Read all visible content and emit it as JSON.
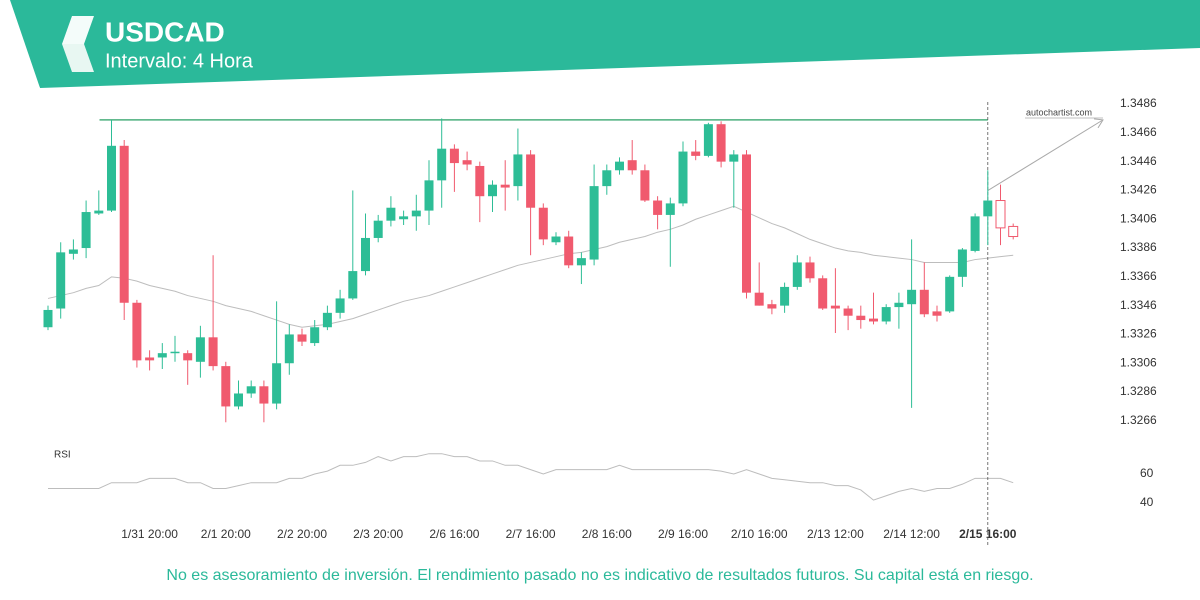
{
  "chart_data": {
    "type": "candlestick",
    "title": "USDCAD",
    "subtitle": "Intervalo: 4 Hora",
    "watermark": "autochartist.com",
    "disclaimer": "No es asesoramiento de inversión. El rendimiento pasado no es indicativo de resultados futuros. Su capital está en riesgo.",
    "categories": [
      null,
      null,
      null,
      null,
      null,
      null,
      null,
      null,
      "1/31 20:00",
      null,
      null,
      null,
      null,
      null,
      "2/1 20:00",
      null,
      null,
      null,
      null,
      null,
      "2/2 20:00",
      null,
      null,
      null,
      null,
      null,
      "2/3 20:00",
      null,
      null,
      null,
      null,
      null,
      "2/6 16:00",
      null,
      null,
      null,
      null,
      null,
      "2/7 16:00",
      null,
      null,
      null,
      null,
      null,
      "2/8 16:00",
      null,
      null,
      null,
      null,
      null,
      "2/9 16:00",
      null,
      null,
      null,
      null,
      null,
      "2/10 16:00",
      null,
      null,
      null,
      null,
      null,
      "2/13 12:00",
      null,
      null,
      null,
      null,
      null,
      "2/14 12:00",
      null,
      null,
      null,
      null,
      null,
      "2/15 16:00",
      null,
      null
    ],
    "open": [
      1.3331,
      1.3344,
      1.3382,
      1.3386,
      1.341,
      1.3412,
      1.3457,
      1.3348,
      1.331,
      1.331,
      1.3313,
      1.3313,
      1.3307,
      1.3324,
      1.3304,
      1.3276,
      1.3285,
      1.329,
      1.3278,
      1.3306,
      1.3326,
      1.332,
      1.3331,
      1.3341,
      1.3351,
      1.337,
      1.3393,
      1.3405,
      1.3406,
      1.3408,
      1.3412,
      1.3433,
      1.3455,
      1.3447,
      1.3443,
      1.3422,
      1.343,
      1.3429,
      1.3451,
      1.3414,
      1.339,
      1.3394,
      1.3374,
      1.3378,
      1.3429,
      1.344,
      1.3447,
      1.344,
      1.3419,
      1.3409,
      1.3417,
      1.3453,
      1.345,
      1.3472,
      1.3446,
      1.3451,
      1.3355,
      1.3347,
      1.3346,
      1.3359,
      1.3376,
      1.3365,
      1.3346,
      1.3344,
      1.3339,
      1.3337,
      1.3335,
      1.3345,
      1.3347,
      1.3357,
      1.3342,
      1.3342,
      1.3366,
      1.3384,
      1.3408,
      1.3419,
      1.3401
    ],
    "high": [
      1.3346,
      1.339,
      1.3392,
      1.3419,
      1.3426,
      1.3475,
      1.3461,
      1.335,
      1.3315,
      1.332,
      1.3325,
      1.3315,
      1.3332,
      1.3381,
      1.3307,
      1.3294,
      1.3294,
      1.3294,
      1.3349,
      1.3333,
      1.333,
      1.3336,
      1.3346,
      1.3357,
      1.3426,
      1.341,
      1.3409,
      1.3422,
      1.3412,
      1.3423,
      1.3447,
      1.3476,
      1.3458,
      1.3453,
      1.3446,
      1.3433,
      1.3447,
      1.3469,
      1.3454,
      1.3417,
      1.3397,
      1.3398,
      1.3383,
      1.3444,
      1.3444,
      1.3449,
      1.3461,
      1.3444,
      1.3422,
      1.3421,
      1.346,
      1.3461,
      1.3473,
      1.3474,
      1.3454,
      1.3454,
      1.3376,
      1.335,
      1.3362,
      1.3381,
      1.338,
      1.3367,
      1.3372,
      1.3346,
      1.3346,
      1.3355,
      1.3347,
      1.3355,
      1.3392,
      1.3376,
      1.3346,
      1.3367,
      1.3386,
      1.341,
      1.344,
      1.343,
      1.3403
    ],
    "low": [
      1.3329,
      1.3337,
      1.3378,
      1.3379,
      1.3409,
      1.3411,
      1.3336,
      1.3303,
      1.3301,
      1.3302,
      1.3307,
      1.3291,
      1.3296,
      1.3301,
      1.3265,
      1.3274,
      1.3282,
      1.3265,
      1.3274,
      1.3298,
      1.3318,
      1.3318,
      1.3329,
      1.3337,
      1.335,
      1.3367,
      1.339,
      1.3401,
      1.3402,
      1.3398,
      1.3402,
      1.3414,
      1.3425,
      1.344,
      1.3404,
      1.3411,
      1.3412,
      1.3419,
      1.3381,
      1.3388,
      1.3388,
      1.3372,
      1.3361,
      1.3374,
      1.3423,
      1.3437,
      1.3437,
      1.3418,
      1.3399,
      1.3373,
      1.3415,
      1.3447,
      1.3449,
      1.3442,
      1.3414,
      1.3351,
      1.3346,
      1.334,
      1.3341,
      1.3357,
      1.3362,
      1.3343,
      1.3327,
      1.3329,
      1.333,
      1.3333,
      1.3333,
      1.333,
      1.3275,
      1.3338,
      1.3335,
      1.3341,
      1.3359,
      1.3383,
      1.3388,
      1.3388,
      1.3392
    ],
    "close": [
      1.3343,
      1.3383,
      1.3385,
      1.3411,
      1.3412,
      1.3457,
      1.3348,
      1.3308,
      1.3308,
      1.3313,
      1.3314,
      1.3308,
      1.3324,
      1.3304,
      1.3276,
      1.3285,
      1.329,
      1.3278,
      1.3306,
      1.3326,
      1.3321,
      1.3331,
      1.3341,
      1.3351,
      1.337,
      1.3393,
      1.3405,
      1.3414,
      1.3408,
      1.3412,
      1.3433,
      1.3455,
      1.3445,
      1.3444,
      1.3422,
      1.343,
      1.3428,
      1.3451,
      1.3414,
      1.3392,
      1.3394,
      1.3374,
      1.3379,
      1.3429,
      1.344,
      1.3446,
      1.344,
      1.3419,
      1.3409,
      1.3417,
      1.3453,
      1.345,
      1.3472,
      1.3446,
      1.3451,
      1.3355,
      1.3346,
      1.3344,
      1.3359,
      1.3376,
      1.3365,
      1.3344,
      1.3344,
      1.3339,
      1.3336,
      1.3335,
      1.3345,
      1.3348,
      1.3357,
      1.334,
      1.3339,
      1.3366,
      1.3385,
      1.3408,
      1.3419,
      1.34,
      1.3394
    ],
    "moving_average": [
      1.3351,
      1.3353,
      1.3355,
      1.3358,
      1.336,
      1.3366,
      1.3365,
      1.3363,
      1.336,
      1.3358,
      1.3356,
      1.3353,
      1.3351,
      1.3349,
      1.3346,
      1.3344,
      1.3342,
      1.3339,
      1.3336,
      1.3333,
      1.3331,
      1.3332,
      1.3333,
      1.3335,
      1.3337,
      1.334,
      1.3343,
      1.3346,
      1.3349,
      1.3351,
      1.3353,
      1.3356,
      1.3359,
      1.3362,
      1.3365,
      1.3368,
      1.3371,
      1.3374,
      1.3376,
      1.3378,
      1.338,
      1.3382,
      1.3383,
      1.3385,
      1.3387,
      1.339,
      1.3392,
      1.3394,
      1.3397,
      1.3399,
      1.3402,
      1.3406,
      1.3409,
      1.3412,
      1.3415,
      1.3411,
      1.3407,
      1.3403,
      1.34,
      1.3396,
      1.3392,
      1.3389,
      1.3386,
      1.3384,
      1.3383,
      1.3381,
      1.338,
      1.3379,
      1.3378,
      1.3376,
      1.3376,
      1.3376,
      1.3376,
      1.3378,
      1.3379,
      1.338,
      1.3381
    ],
    "up_color": "#2dbd96",
    "down_color": "#f05a6e",
    "hollow_count": 2,
    "current_index": 74,
    "resistance_level": 1.3475,
    "ylim": [
      1.3252,
      1.3492
    ],
    "yticks": [
      1.3486,
      1.3466,
      1.3446,
      1.3426,
      1.3406,
      1.3386,
      1.3366,
      1.3346,
      1.3326,
      1.3306,
      1.3286,
      1.3266
    ],
    "rsi": {
      "label": "RSI",
      "values": [
        50,
        50,
        50,
        50,
        50,
        54,
        54,
        54,
        57,
        57,
        57,
        54,
        54,
        50,
        50,
        52,
        54,
        54,
        54,
        57,
        57,
        60,
        62,
        66,
        66,
        68,
        72,
        69,
        72,
        72,
        74,
        74,
        72,
        72,
        69,
        69,
        66,
        66,
        63,
        60,
        63,
        63,
        63,
        63,
        63,
        66,
        63,
        63,
        63,
        63,
        63,
        63,
        63,
        62,
        60,
        63,
        60,
        57,
        56,
        55,
        54,
        54,
        52,
        52,
        49,
        42,
        45,
        48,
        50,
        48,
        50,
        50,
        53,
        57,
        57,
        57,
        54
      ],
      "ylim": [
        30,
        80
      ],
      "yticks": [
        60,
        40
      ]
    }
  }
}
